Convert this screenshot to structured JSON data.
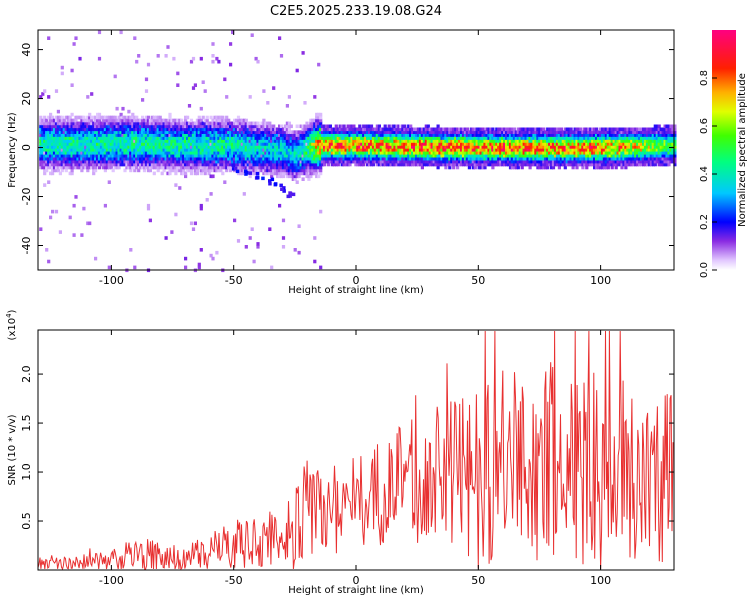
{
  "title": "C2E5.2025.233.19.08.G24",
  "chart_data": [
    {
      "type": "heatmap",
      "xlabel": "Height of straight line (km)",
      "ylabel": "Frequency (Hz)",
      "xlim": [
        -130,
        130
      ],
      "ylim": [
        -50,
        48
      ],
      "xticks": [
        -100,
        -50,
        0,
        50,
        100
      ],
      "xtick_labels": [
        "-100",
        "-50",
        "0",
        "50",
        "100"
      ],
      "yticks": [
        40,
        20,
        0,
        -20,
        -40
      ],
      "ytick_labels": [
        "40",
        "20",
        "0",
        "-20",
        "-40"
      ],
      "colorbar": {
        "label": "Normalized spectral amplitude",
        "range": [
          0.0,
          1.0
        ],
        "ticks": [
          0.0,
          0.2,
          0.4,
          0.6,
          0.8
        ],
        "tick_labels": [
          "0.0",
          "0.2",
          "0.4",
          "0.6",
          "0.8"
        ],
        "colormap": "rainbow-white-to-magenta"
      },
      "ridge": {
        "x": [
          -130,
          -110,
          -90,
          -70,
          -50,
          -40,
          -30,
          -25,
          -20,
          -15,
          0,
          50,
          100,
          130
        ],
        "center_freq": [
          1.5,
          1.5,
          2,
          1,
          1,
          0,
          -1,
          -3,
          0,
          1,
          1,
          0,
          0,
          1
        ],
        "peak_amplitude": [
          0.45,
          0.45,
          0.45,
          0.45,
          0.45,
          0.4,
          0.38,
          0.38,
          0.5,
          0.85,
          0.85,
          0.85,
          0.85,
          0.55
        ]
      },
      "secondary_trace": {
        "x": [
          -50,
          -45,
          -40,
          -35,
          -30,
          -27
        ],
        "freq": [
          -8,
          -10,
          -11,
          -13,
          -16,
          -18
        ]
      }
    },
    {
      "type": "line",
      "xlabel": "Height of straight line (km)",
      "ylabel": "SNR (10 * v/v)",
      "y_multiplier_label": "(x10",
      "y_multiplier_exp": "4",
      "y_multiplier_close": ")",
      "xlim": [
        -130,
        130
      ],
      "ylim": [
        0.0,
        2.45
      ],
      "xticks": [
        -100,
        -50,
        0,
        50,
        100
      ],
      "xtick_labels": [
        "-100",
        "-50",
        "0",
        "50",
        "100"
      ],
      "yticks": [
        0.5,
        1.0,
        1.5,
        2.0
      ],
      "ytick_labels": [
        "0.5",
        "1.0",
        "1.5",
        "2.0"
      ],
      "series": [
        {
          "name": "SNR",
          "color": "#e83030",
          "envelope_x": [
            -130,
            -100,
            -90,
            -70,
            -50,
            -30,
            -22,
            -20,
            0,
            20,
            40,
            50,
            70,
            90,
            110,
            130
          ],
          "mean": [
            0.05,
            0.1,
            0.15,
            0.12,
            0.25,
            0.35,
            0.5,
            0.6,
            0.7,
            0.9,
            1.0,
            1.0,
            1.1,
            1.05,
            1.0,
            0.95
          ],
          "amplitude": [
            0.05,
            0.1,
            0.2,
            0.12,
            0.25,
            0.35,
            0.5,
            0.55,
            0.5,
            0.6,
            0.8,
            1.0,
            1.0,
            1.1,
            1.0,
            0.9
          ]
        }
      ]
    }
  ]
}
